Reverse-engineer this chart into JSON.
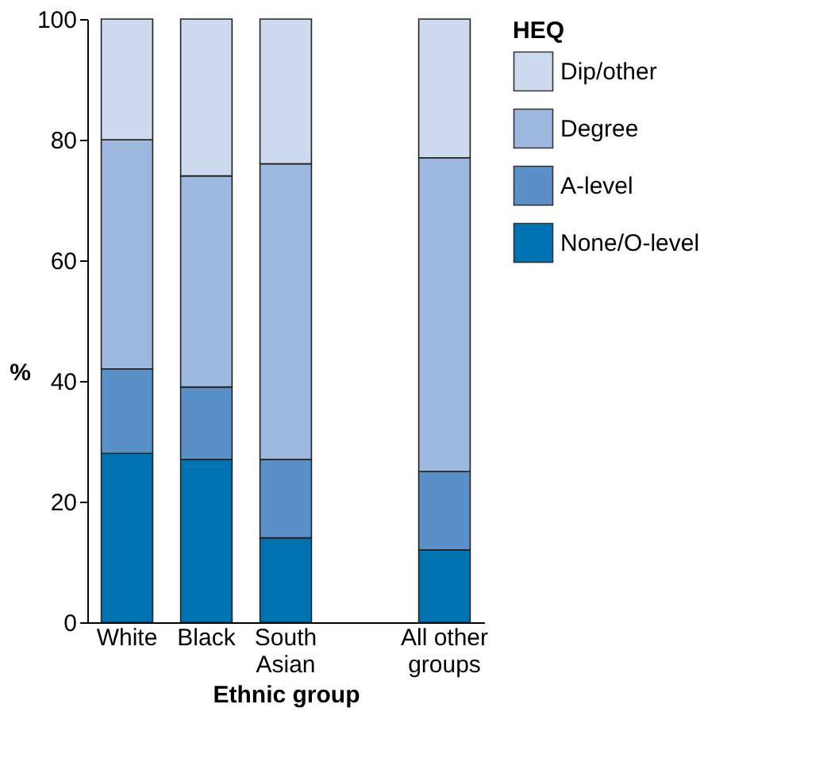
{
  "chart_data": {
    "type": "bar",
    "stacked": true,
    "xlabel": "Ethnic group",
    "ylabel": "%",
    "legend_title": "HEQ",
    "legend": "right",
    "categories": [
      "White",
      "Black",
      "South Asian",
      null,
      "All other groups"
    ],
    "ylim": [
      0,
      100
    ],
    "yticks": [
      0,
      20,
      40,
      60,
      80,
      100
    ],
    "grid": false,
    "series": [
      {
        "name": "None/O-level",
        "color": "#0072b1",
        "values": [
          28,
          27,
          14,
          null,
          12
        ]
      },
      {
        "name": "A-level",
        "color": "#5b8fc8",
        "values": [
          14,
          12,
          13,
          null,
          13
        ]
      },
      {
        "name": "Degree",
        "color": "#9db7de",
        "values": [
          38,
          35,
          49,
          null,
          52
        ]
      },
      {
        "name": "Dip/other",
        "color": "#cdd9ee",
        "values": [
          20,
          26,
          24,
          null,
          23
        ]
      }
    ]
  }
}
